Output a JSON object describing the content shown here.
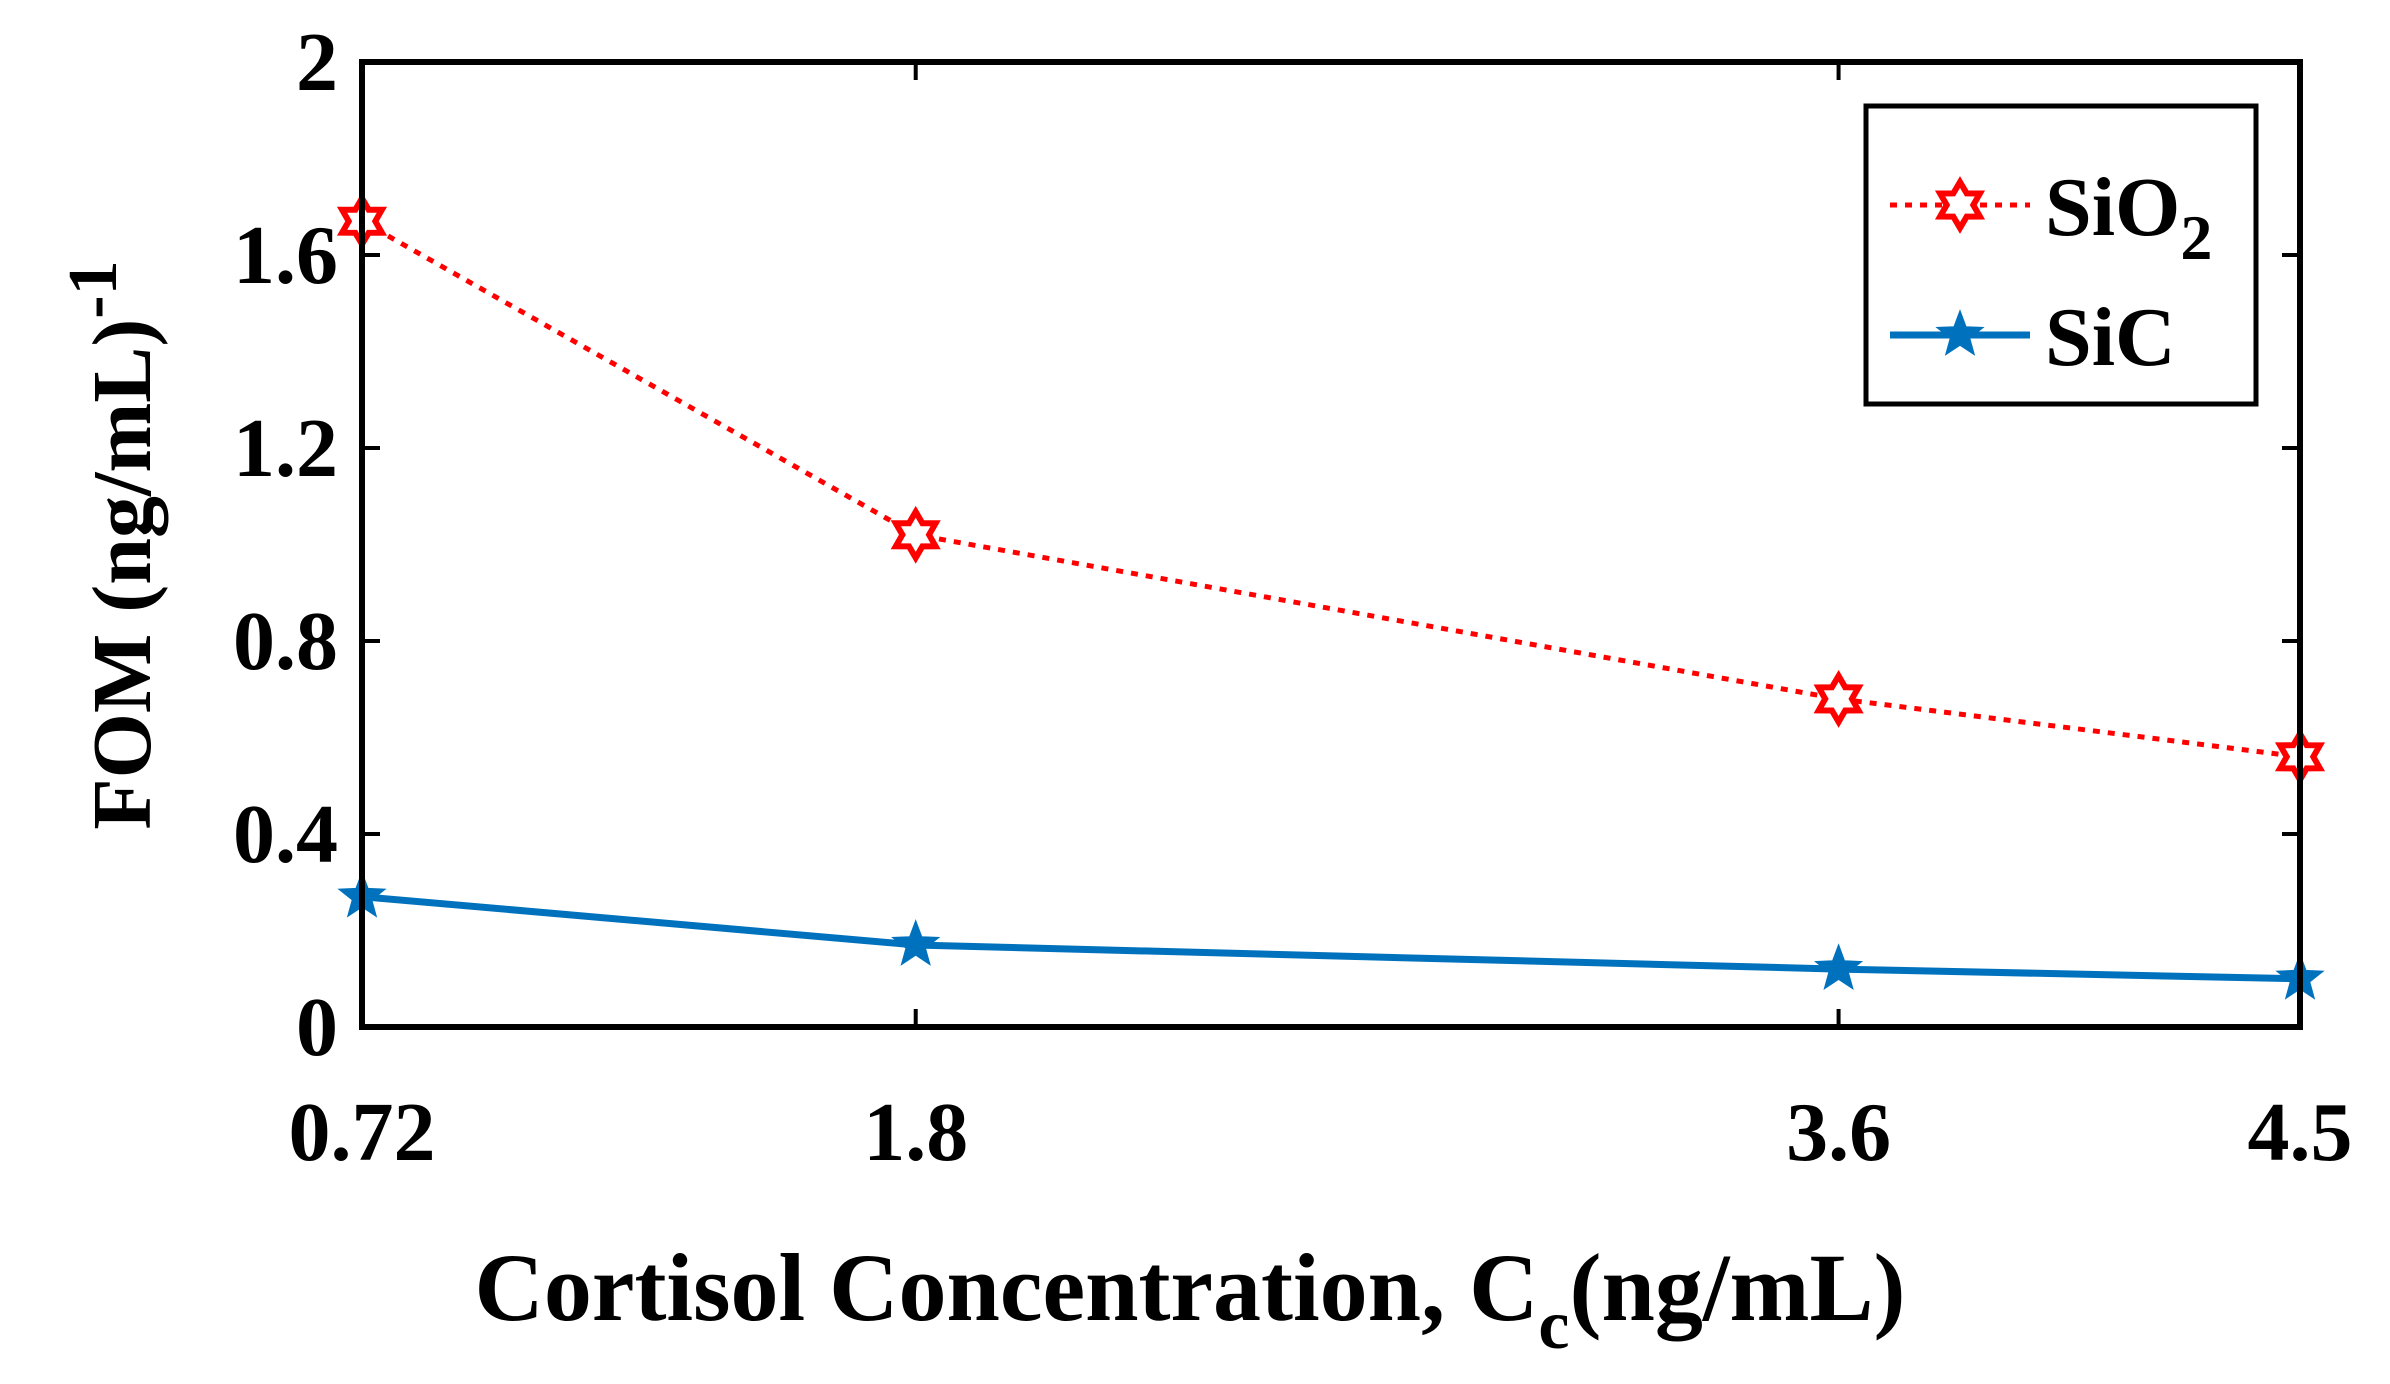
{
  "chart_data": {
    "type": "line",
    "title": "",
    "xlabel": "Cortisol Concentration, C",
    "xlabel_sub": "c",
    "xlabel_unit": "(ng/mL)",
    "ylabel": "FOM (ng/mL)",
    "ylabel_sup": "-1",
    "categories": [
      "0.72",
      "1.8",
      "3.6",
      "4.5"
    ],
    "x": [
      0.72,
      1.8,
      3.6,
      4.5
    ],
    "xlim": [
      0.72,
      4.5
    ],
    "ylim": [
      0,
      2
    ],
    "yticks": [
      0,
      0.4,
      0.8,
      1.2,
      1.6,
      2
    ],
    "ytick_labels": [
      "0",
      "0.4",
      "0.8",
      "1.2",
      "1.6",
      "2"
    ],
    "grid": false,
    "legend_position": "top-right",
    "series": [
      {
        "name": "SiO",
        "name_sub": "2",
        "color": "#ff0000",
        "line": "dotted",
        "marker": "hexagram",
        "values": [
          1.67,
          1.02,
          0.68,
          0.56
        ]
      },
      {
        "name": "SiC",
        "name_sub": "",
        "color": "#0072bd",
        "line": "solid",
        "marker": "pentagram",
        "values": [
          0.27,
          0.17,
          0.12,
          0.1
        ]
      }
    ]
  }
}
